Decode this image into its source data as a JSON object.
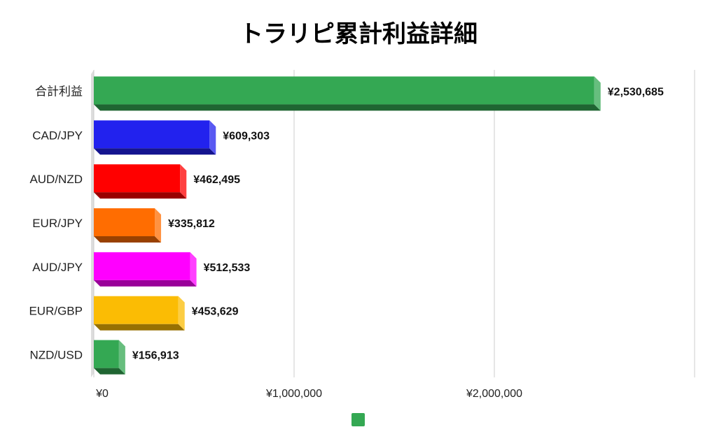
{
  "chart_data": {
    "type": "bar",
    "orientation": "horizontal",
    "title": "トラリピ累計利益詳細",
    "categories": [
      "合計利益",
      "CAD/JPY",
      "AUD/NZD",
      "EUR/JPY",
      "AUD/JPY",
      "EUR/GBP",
      "NZD/USD"
    ],
    "values": [
      2530685,
      609303,
      462495,
      335812,
      512533,
      453629,
      156913
    ],
    "data_labels": [
      "¥2,530,685",
      "¥609,303",
      "¥462,495",
      "¥335,812",
      "¥512,533",
      "¥453,629",
      "¥156,913"
    ],
    "bar_colors": [
      "#34a853",
      "#2222ee",
      "#ff0000",
      "#ff6d01",
      "#ff00ff",
      "#fbbc04",
      "#34a853"
    ],
    "xlim": [
      0,
      3000000
    ],
    "x_ticks": [
      0,
      1000000,
      2000000
    ],
    "x_tick_labels": [
      "¥0",
      "¥1,000,000",
      "¥2,000,000"
    ],
    "grid": true,
    "legend": {
      "position": "bottom",
      "entries": [
        {
          "color": "#34a853",
          "label": ""
        }
      ]
    }
  }
}
